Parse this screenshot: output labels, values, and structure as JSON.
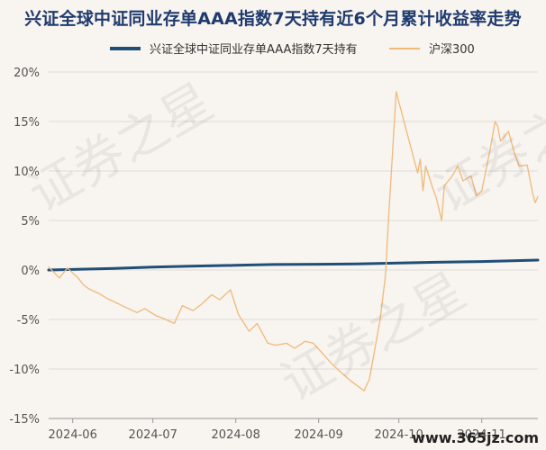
{
  "chart_data": {
    "type": "line",
    "title": "兴证全球中证同业存单AAA指数7天持有近6个月累计收益率走势",
    "x_tick_labels": [
      "2024-06",
      "2024-07",
      "2024-08",
      "2024-09",
      "2024-10",
      "2024-11"
    ],
    "y_tick_labels": [
      "20%",
      "15%",
      "10%",
      "5%",
      "0%",
      "-5%",
      "-10%",
      "-15%"
    ],
    "y_ticks": [
      20,
      15,
      10,
      5,
      0,
      -5,
      -10,
      -15
    ],
    "ylim": [
      -15,
      20
    ],
    "xlim": [
      "2024-05-23",
      "2024-11-22"
    ],
    "grid": "horizontal",
    "legend_position": "top",
    "series": [
      {
        "name": "兴证全球中证同业存单AAA指数7天持有",
        "color": "#1f4e79",
        "x": [
          "2024-05-23",
          "2024-06-15",
          "2024-07-01",
          "2024-07-15",
          "2024-08-01",
          "2024-08-15",
          "2024-09-01",
          "2024-09-15",
          "2024-10-01",
          "2024-10-15",
          "2024-11-01",
          "2024-11-22"
        ],
        "values": [
          0.0,
          0.15,
          0.3,
          0.38,
          0.47,
          0.55,
          0.58,
          0.62,
          0.7,
          0.78,
          0.85,
          1.0
        ]
      },
      {
        "name": "沪深300",
        "color": "#f0b97a",
        "x": [
          "2024-05-23",
          "2024-05-27",
          "2024-05-30",
          "2024-06-03",
          "2024-06-05",
          "2024-06-07",
          "2024-06-11",
          "2024-06-14",
          "2024-06-18",
          "2024-06-21",
          "2024-06-25",
          "2024-06-28",
          "2024-07-02",
          "2024-07-05",
          "2024-07-09",
          "2024-07-12",
          "2024-07-16",
          "2024-07-19",
          "2024-07-23",
          "2024-07-26",
          "2024-07-30",
          "2024-08-02",
          "2024-08-06",
          "2024-08-09",
          "2024-08-13",
          "2024-08-16",
          "2024-08-20",
          "2024-08-23",
          "2024-08-27",
          "2024-08-30",
          "2024-09-03",
          "2024-09-06",
          "2024-09-10",
          "2024-09-13",
          "2024-09-18",
          "2024-09-20",
          "2024-09-24",
          "2024-09-26",
          "2024-09-27",
          "2024-09-30",
          "2024-10-08",
          "2024-10-09",
          "2024-10-10",
          "2024-10-11",
          "2024-10-14",
          "2024-10-15",
          "2024-10-17",
          "2024-10-18",
          "2024-10-21",
          "2024-10-23",
          "2024-10-25",
          "2024-10-28",
          "2024-10-30",
          "2024-11-01",
          "2024-11-04",
          "2024-11-06",
          "2024-11-07",
          "2024-11-08",
          "2024-11-11",
          "2024-11-13",
          "2024-11-15",
          "2024-11-18",
          "2024-11-20",
          "2024-11-21",
          "2024-11-22"
        ],
        "values": [
          0.3,
          -0.8,
          0.2,
          -0.8,
          -1.5,
          -1.9,
          -2.4,
          -2.9,
          -3.4,
          -3.8,
          -4.3,
          -3.9,
          -4.6,
          -4.9,
          -5.4,
          -3.6,
          -4.1,
          -3.5,
          -2.5,
          -3.0,
          -2.0,
          -4.5,
          -6.2,
          -5.4,
          -7.4,
          -7.6,
          -7.4,
          -7.9,
          -7.2,
          -7.4,
          -8.6,
          -9.5,
          -10.5,
          -11.2,
          -12.2,
          -11.0,
          -5.0,
          -0.5,
          4.5,
          18.0,
          9.8,
          11.2,
          8.0,
          10.5,
          8.0,
          7.3,
          5.0,
          8.5,
          9.5,
          10.5,
          9.0,
          9.5,
          7.5,
          8.0,
          12.0,
          15.0,
          14.5,
          13.0,
          14.0,
          12.0,
          10.5,
          10.6,
          7.8,
          6.8,
          7.4
        ]
      }
    ]
  },
  "watermark": "证券之星",
  "site_mark": "www.365jz.com"
}
